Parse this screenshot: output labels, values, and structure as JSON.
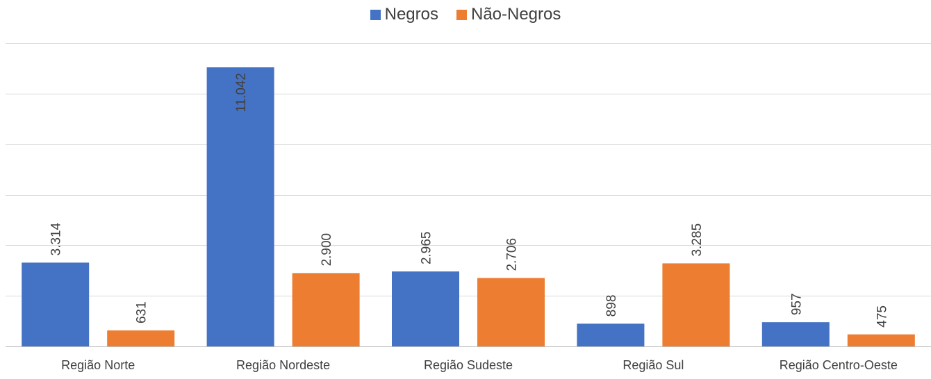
{
  "chart_data": {
    "type": "bar",
    "title": "",
    "xlabel": "",
    "ylabel": "",
    "categories": [
      "Região Norte",
      "Região Nordeste",
      "Região Sudeste",
      "Região Sul",
      "Região Centro-Oeste"
    ],
    "series": [
      {
        "name": "Negros",
        "color": "#4472C4",
        "values": [
          3314,
          11042,
          2965,
          898,
          957
        ],
        "labels": [
          "3.314",
          "11.042",
          "2.965",
          "898",
          "957"
        ]
      },
      {
        "name": "Não-Negros",
        "color": "#ED7D31",
        "values": [
          631,
          2900,
          2706,
          3285,
          475
        ],
        "labels": [
          "631",
          "2.900",
          "2.706",
          "3.285",
          "475"
        ]
      }
    ],
    "ylim": [
      0,
      12000
    ],
    "grid": true,
    "legend": "top-center",
    "gridline_color": "#D9D9D9",
    "axis_color": "#BFBFBF",
    "text_color": "#404040"
  }
}
